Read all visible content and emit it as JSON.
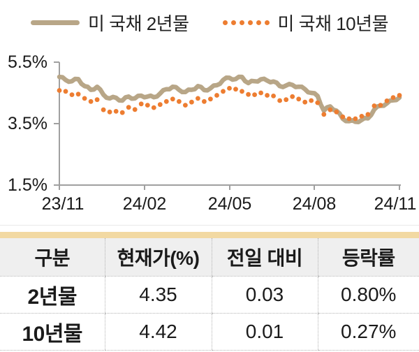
{
  "chart_data": {
    "type": "line",
    "title": "",
    "xlabel": "",
    "ylabel": "",
    "x_tick_labels": [
      "23/11",
      "24/02",
      "24/05",
      "24/08",
      "24/11"
    ],
    "y_tick_labels": [
      "5.5%",
      "3.5%",
      "1.5%"
    ],
    "y_ticks": [
      5.5,
      3.5,
      1.5
    ],
    "ylim": [
      1.5,
      5.5
    ],
    "y_unit": "%",
    "grid": false,
    "legend_position": "top",
    "series": [
      {
        "name": "미 국채 2년물",
        "style": "solid",
        "color": "#b8a687",
        "values": [
          5.02,
          4.92,
          4.88,
          4.95,
          4.72,
          4.6,
          4.7,
          4.44,
          4.32,
          4.34,
          4.25,
          4.38,
          4.32,
          4.41,
          4.38,
          4.36,
          4.48,
          4.62,
          4.7,
          4.6,
          4.53,
          4.6,
          4.72,
          4.59,
          4.65,
          4.75,
          4.92,
          4.99,
          4.95,
          5.02,
          4.82,
          4.88,
          4.94,
          4.9,
          4.87,
          4.72,
          4.74,
          4.76,
          4.7,
          4.62,
          4.5,
          4.4,
          3.92,
          4.06,
          3.92,
          3.66,
          3.58,
          3.56,
          3.62,
          3.67,
          3.96,
          4.08,
          4.16,
          4.26,
          4.35
        ]
      },
      {
        "name": "미 국채 10년물",
        "style": "dotted",
        "color": "#ed7d31",
        "values": [
          4.58,
          4.55,
          4.44,
          4.46,
          4.32,
          4.22,
          4.28,
          3.95,
          3.88,
          3.9,
          3.86,
          4.03,
          3.96,
          4.14,
          4.1,
          4.02,
          4.12,
          4.22,
          4.3,
          4.22,
          4.1,
          4.2,
          4.32,
          4.22,
          4.3,
          4.42,
          4.55,
          4.65,
          4.62,
          4.55,
          4.45,
          4.44,
          4.5,
          4.42,
          4.4,
          4.25,
          4.28,
          4.38,
          4.3,
          4.2,
          4.25,
          4.18,
          3.8,
          3.95,
          3.88,
          3.72,
          3.66,
          3.66,
          3.74,
          3.8,
          4.08,
          4.1,
          4.24,
          4.35,
          4.42
        ]
      }
    ]
  },
  "table": {
    "accent_color": "#f2d9a2",
    "headers": [
      "구분",
      "현재가(%)",
      "전일 대비",
      "등락률"
    ],
    "rows": [
      {
        "label": "2년물",
        "current": "4.35",
        "change": "0.03",
        "change_pct": "0.80%"
      },
      {
        "label": "10년물",
        "current": "4.42",
        "change": "0.01",
        "change_pct": "0.27%"
      }
    ]
  },
  "colors": {
    "series_2y": "#b8a687",
    "series_10y": "#ed7d31",
    "axis": "#a0a0a0",
    "table_header_bg": "#efefef",
    "table_border": "#b3b3b3",
    "accent_bar": "#f2d9a2",
    "text": "#1a1a1a"
  }
}
